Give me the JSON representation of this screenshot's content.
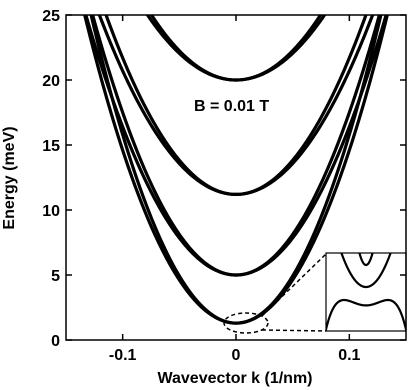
{
  "chart_data": {
    "type": "line",
    "title": "",
    "xlabel": "Wavevector k (1/nm)",
    "ylabel": "Energy (meV)",
    "xlim": [
      -0.15,
      0.15
    ],
    "ylim": [
      0,
      25
    ],
    "x_ticks": [
      -0.1,
      0,
      0.1
    ],
    "x_tick_labels": [
      "-0.1",
      "0",
      "0.1"
    ],
    "y_ticks": [
      0,
      5,
      10,
      15,
      20,
      25
    ],
    "y_tick_labels": [
      "0",
      "5",
      "10",
      "15",
      "20",
      "25"
    ],
    "grid": false,
    "annotation": "B = 0.01 T",
    "series": [
      {
        "branch": "outer",
        "min_energy": 1.3,
        "curvature": 1450
      },
      {
        "branch": "inner",
        "min_energy": 1.3,
        "curvature": 1330
      },
      {
        "branch": "outer",
        "min_energy": 5.0,
        "curvature": 1250
      },
      {
        "branch": "inner",
        "min_energy": 5.0,
        "curvature": 1140
      },
      {
        "branch": "outer",
        "min_energy": 11.2,
        "curvature": 1050
      },
      {
        "branch": "inner",
        "min_energy": 11.2,
        "curvature": 950
      },
      {
        "branch": "outer",
        "min_energy": 20.0,
        "curvature": 900
      },
      {
        "branch": "inner",
        "min_energy": 20.0,
        "curvature": 820
      }
    ],
    "inset": {
      "type": "line",
      "description_visible": false,
      "branches": [
        {
          "kind": "double-well"
        },
        {
          "kind": "parabola"
        },
        {
          "kind": "double-well-upper"
        }
      ]
    }
  }
}
